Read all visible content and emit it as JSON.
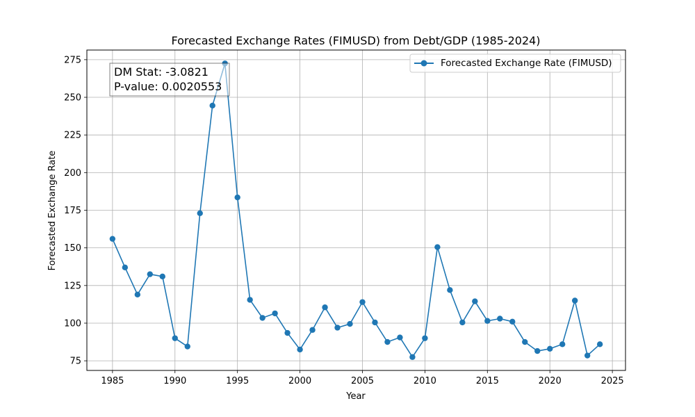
{
  "chart_data": {
    "type": "line",
    "title": "Forecasted Exchange Rates (FIMUSD) from Debt/GDP (1985-2024)",
    "xlabel": "Year",
    "ylabel": "Forecasted Exchange Rate",
    "xlim": [
      1982.95,
      2026.05
    ],
    "ylim": [
      68.6,
      281.4
    ],
    "xticks": [
      1985,
      1990,
      1995,
      2000,
      2005,
      2010,
      2015,
      2020,
      2025
    ],
    "yticks": [
      75,
      100,
      125,
      150,
      175,
      200,
      225,
      250,
      275
    ],
    "grid": true,
    "legend_position": "upper right",
    "color": "#1f77b4",
    "series": [
      {
        "name": "Forecasted Exchange Rate (FIMUSD)",
        "x": [
          1985,
          1986,
          1987,
          1988,
          1989,
          1990,
          1991,
          1992,
          1993,
          1994,
          1995,
          1996,
          1997,
          1998,
          1999,
          2000,
          2001,
          2002,
          2003,
          2004,
          2005,
          2006,
          2007,
          2008,
          2009,
          2010,
          2011,
          2012,
          2013,
          2014,
          2015,
          2016,
          2017,
          2018,
          2019,
          2020,
          2021,
          2022,
          2023,
          2024
        ],
        "values": [
          156,
          137,
          119,
          132.5,
          131,
          90,
          84.5,
          173,
          244.5,
          272.5,
          183.5,
          115.5,
          103.5,
          106.5,
          93.5,
          82.5,
          95.5,
          110.5,
          97,
          99.5,
          114,
          100.5,
          87.5,
          90.5,
          77.5,
          90,
          150.5,
          122,
          100.5,
          114.5,
          101.5,
          103,
          101,
          87.5,
          81.5,
          83,
          86,
          115,
          78.5,
          86
        ]
      }
    ],
    "annotation": {
      "line1": "DM Stat: -3.0821",
      "line2": "P-value: 0.0020553"
    }
  }
}
